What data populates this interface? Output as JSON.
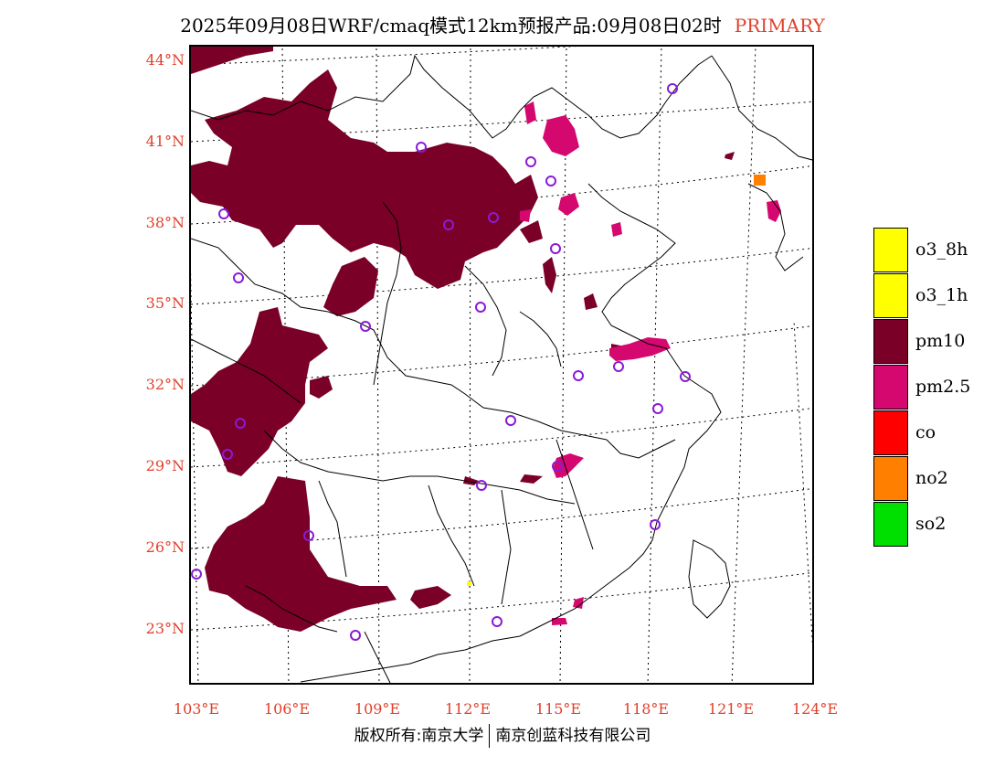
{
  "title": {
    "text": "2025年09月08日WRF/cmaq模式12km预报产品:09月08日02时",
    "tag": "PRIMARY"
  },
  "axes": {
    "lat_labels": [
      "44°N",
      "41°N",
      "38°N",
      "35°N",
      "32°N",
      "29°N",
      "26°N",
      "23°N"
    ],
    "lon_labels": [
      "103°E",
      "106°E",
      "109°E",
      "112°E",
      "115°E",
      "118°E",
      "121°E",
      "124°E"
    ]
  },
  "legend": [
    {
      "label": "o3_8h",
      "color": "#ffff00"
    },
    {
      "label": "o3_1h",
      "color": "#ffff00"
    },
    {
      "label": "pm10",
      "color": "#7a0028"
    },
    {
      "label": "pm2.5",
      "color": "#d4086e"
    },
    {
      "label": "co",
      "color": "#ff0000"
    },
    {
      "label": "no2",
      "color": "#ff7f00"
    },
    {
      "label": "so2",
      "color": "#00e000"
    }
  ],
  "footer": {
    "left": "版权所有:南京大学",
    "right": "南京创蓝科技有限公司"
  },
  "colors": {
    "pm10": "#7a0028",
    "pm25": "#d4086e",
    "no2": "#ff7f00",
    "o3": "#ffff00",
    "station": "#8a1ad8",
    "axis_label": "#e0402b"
  }
}
